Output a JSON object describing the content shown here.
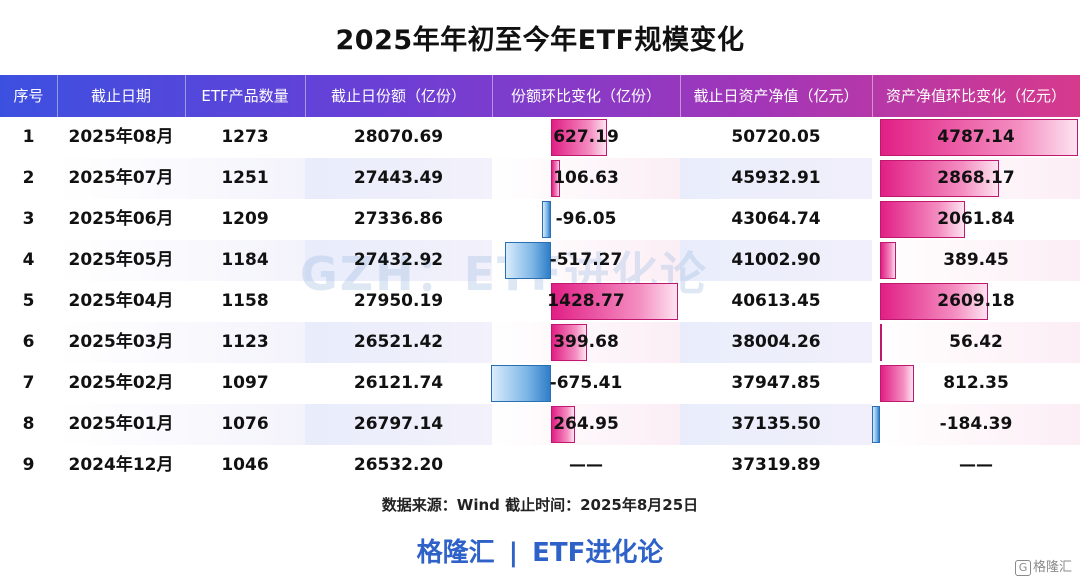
{
  "title": "2025年年初至今年ETF规模变化",
  "watermark": "GZH：ETF进化论",
  "source": "数据来源：Wind 截止时间：2025年8月25日",
  "footer": {
    "brand": "格隆汇",
    "sep": "|",
    "name": "ETF进化论"
  },
  "corner_logo": {
    "glyph": "G",
    "text": "格隆汇"
  },
  "colors": {
    "positive": "#e11f85",
    "negative": "#2f7ec8",
    "header_start": "#3c50e0",
    "header_end": "#d63a8c"
  },
  "chart_data": {
    "type": "table",
    "columns": [
      "序号",
      "截止日期",
      "ETF产品数量",
      "截止日份额（亿份）",
      "份额环比变化（亿份）",
      "截止日资产净值（亿元）",
      "资产净值环比变化（亿元）"
    ],
    "rows": [
      {
        "idx": "1",
        "date": "2025年08月",
        "count": "1273",
        "shares": "28070.69",
        "share_change": "627.19",
        "nav": "50720.05",
        "nav_change": "4787.14"
      },
      {
        "idx": "2",
        "date": "2025年07月",
        "count": "1251",
        "shares": "27443.49",
        "share_change": "106.63",
        "nav": "45932.91",
        "nav_change": "2868.17"
      },
      {
        "idx": "3",
        "date": "2025年06月",
        "count": "1209",
        "shares": "27336.86",
        "share_change": "-96.05",
        "nav": "43064.74",
        "nav_change": "2061.84"
      },
      {
        "idx": "4",
        "date": "2025年05月",
        "count": "1184",
        "shares": "27432.92",
        "share_change": "-517.27",
        "nav": "41002.90",
        "nav_change": "389.45"
      },
      {
        "idx": "5",
        "date": "2025年04月",
        "count": "1158",
        "shares": "27950.19",
        "share_change": "1428.77",
        "nav": "40613.45",
        "nav_change": "2609.18"
      },
      {
        "idx": "6",
        "date": "2025年03月",
        "count": "1123",
        "shares": "26521.42",
        "share_change": "399.68",
        "nav": "38004.26",
        "nav_change": "56.42"
      },
      {
        "idx": "7",
        "date": "2025年02月",
        "count": "1097",
        "shares": "26121.74",
        "share_change": "-675.41",
        "nav": "37947.85",
        "nav_change": "812.35"
      },
      {
        "idx": "8",
        "date": "2025年01月",
        "count": "1076",
        "shares": "26797.14",
        "share_change": "264.95",
        "nav": "37135.50",
        "nav_change": "-184.39"
      },
      {
        "idx": "9",
        "date": "2024年12月",
        "count": "1046",
        "shares": "26532.20",
        "share_change": "——",
        "nav": "37319.89",
        "nav_change": "——"
      }
    ]
  }
}
